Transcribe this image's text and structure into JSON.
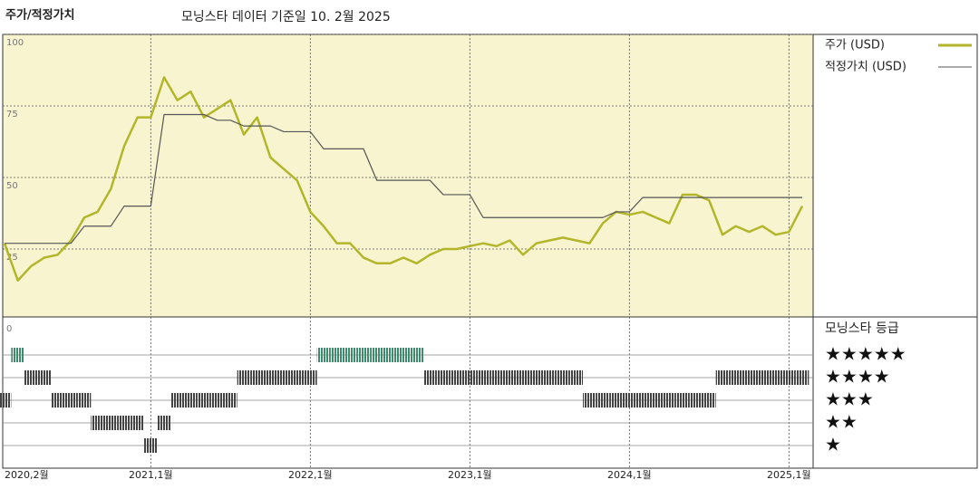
{
  "chart_data": {
    "type": "line",
    "title": "주가/적정가치",
    "subtitle": "모닝스타 데이터 기준일 10. 2월 2025",
    "x": [
      "2020-02",
      "2020-03",
      "2020-04",
      "2020-05",
      "2020-06",
      "2020-07",
      "2020-08",
      "2020-09",
      "2020-10",
      "2020-11",
      "2020-12",
      "2021-01",
      "2021-02",
      "2021-03",
      "2021-04",
      "2021-05",
      "2021-06",
      "2021-07",
      "2021-08",
      "2021-09",
      "2021-10",
      "2021-11",
      "2021-12",
      "2022-01",
      "2022-02",
      "2022-03",
      "2022-04",
      "2022-05",
      "2022-06",
      "2022-07",
      "2022-08",
      "2022-09",
      "2022-10",
      "2022-11",
      "2022-12",
      "2023-01",
      "2023-02",
      "2023-03",
      "2023-04",
      "2023-05",
      "2023-06",
      "2023-07",
      "2023-08",
      "2023-09",
      "2023-10",
      "2023-11",
      "2023-12",
      "2024-01",
      "2024-02",
      "2024-03",
      "2024-04",
      "2024-05",
      "2024-06",
      "2024-07",
      "2024-08",
      "2024-09",
      "2024-10",
      "2024-11",
      "2024-12",
      "2025-01",
      "2025-02"
    ],
    "series": [
      {
        "name": "주가 (USD)",
        "color": "#b3b52a",
        "values": [
          27,
          14,
          19,
          22,
          23,
          28,
          36,
          38,
          46,
          61,
          71,
          71,
          85,
          77,
          80,
          71,
          74,
          77,
          65,
          71,
          57,
          53,
          49,
          38,
          33,
          27,
          27,
          22,
          20,
          20,
          22,
          20,
          23,
          25,
          25,
          26,
          27,
          26,
          28,
          23,
          27,
          28,
          29,
          28,
          27,
          34,
          38,
          37,
          38,
          36,
          34,
          44,
          44,
          42,
          30,
          33,
          31,
          33,
          30,
          31,
          40
        ]
      },
      {
        "name": "적정가치 (USD)",
        "color": "#555555",
        "values": [
          27,
          27,
          27,
          27,
          27,
          27,
          33,
          33,
          33,
          40,
          40,
          40,
          72,
          72,
          72,
          72,
          70,
          70,
          68,
          68,
          68,
          66,
          66,
          66,
          60,
          60,
          60,
          60,
          49,
          49,
          49,
          49,
          49,
          44,
          44,
          44,
          36,
          36,
          36,
          36,
          36,
          36,
          36,
          36,
          36,
          36,
          38,
          38,
          43,
          43,
          43,
          43,
          43,
          43,
          43,
          43,
          43,
          43,
          43,
          43,
          43
        ]
      }
    ],
    "ylim": [
      0,
      100
    ],
    "yticks": [
      0,
      25,
      50,
      75,
      100
    ],
    "xticks": [
      {
        "value": "2020-02",
        "label": "2020,2월"
      },
      {
        "value": "2021-01",
        "label": "2021,1월"
      },
      {
        "value": "2022-01",
        "label": "2022,1월"
      },
      {
        "value": "2023-01",
        "label": "2023,1월"
      },
      {
        "value": "2024-01",
        "label": "2024,1월"
      },
      {
        "value": "2025-01",
        "label": "2025,1월"
      }
    ],
    "grid": true,
    "legend": "right",
    "ratings": {
      "title": "모닝스타 등급",
      "levels": [
        {
          "value": 5,
          "label": "★★★★★"
        },
        {
          "value": 4,
          "label": "★★★★"
        },
        {
          "value": 3,
          "label": "★★★"
        },
        {
          "value": 2,
          "label": "★★"
        },
        {
          "value": 1,
          "label": "★"
        }
      ],
      "top_color": "#3d8c6c",
      "color": "#444444",
      "values": [
        3,
        5,
        4,
        4,
        3,
        3,
        3,
        2,
        2,
        2,
        2,
        1,
        2,
        3,
        3,
        3,
        3,
        3,
        4,
        4,
        4,
        4,
        4,
        4,
        5,
        5,
        5,
        5,
        5,
        5,
        5,
        5,
        4,
        4,
        4,
        4,
        4,
        4,
        4,
        4,
        4,
        4,
        4,
        4,
        3,
        3,
        3,
        3,
        3,
        3,
        3,
        3,
        3,
        3,
        4,
        4,
        4,
        4,
        4,
        4,
        4
      ]
    }
  }
}
